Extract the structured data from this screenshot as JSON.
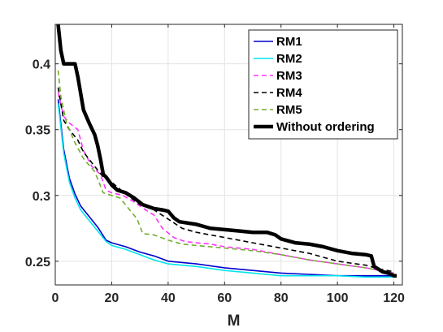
{
  "chart_data": {
    "type": "line",
    "xlabel": "M",
    "ylabel": "",
    "xlim": [
      0,
      123
    ],
    "ylim": [
      0.232,
      0.43
    ],
    "xticks": [
      0,
      20,
      40,
      60,
      80,
      100,
      120
    ],
    "yticks": [
      0.25,
      0.3,
      0.35,
      0.4
    ],
    "xtick_labels": [
      "0",
      "20",
      "40",
      "60",
      "80",
      "100",
      "120"
    ],
    "ytick_labels": [
      "0.25",
      "0.3",
      "0.35",
      "0.4"
    ],
    "grid": true,
    "legend_position": "top-right",
    "series": [
      {
        "name": "RM1",
        "color": "#0000cc",
        "style": "solid",
        "points": [
          [
            1,
            0.373
          ],
          [
            3,
            0.335
          ],
          [
            5,
            0.313
          ],
          [
            7,
            0.301
          ],
          [
            9,
            0.292
          ],
          [
            12,
            0.284
          ],
          [
            15,
            0.276
          ],
          [
            18,
            0.266
          ],
          [
            20,
            0.264
          ],
          [
            25,
            0.261
          ],
          [
            30,
            0.257
          ],
          [
            35,
            0.254
          ],
          [
            40,
            0.25
          ],
          [
            45,
            0.249
          ],
          [
            50,
            0.248
          ],
          [
            60,
            0.245
          ],
          [
            70,
            0.243
          ],
          [
            80,
            0.241
          ],
          [
            90,
            0.24
          ],
          [
            100,
            0.239
          ],
          [
            110,
            0.239
          ],
          [
            120,
            0.239
          ]
        ]
      },
      {
        "name": "RM2",
        "color": "#00e6ee",
        "style": "solid",
        "points": [
          [
            1,
            0.37
          ],
          [
            3,
            0.332
          ],
          [
            5,
            0.31
          ],
          [
            7,
            0.298
          ],
          [
            9,
            0.289
          ],
          [
            12,
            0.281
          ],
          [
            15,
            0.273
          ],
          [
            18,
            0.265
          ],
          [
            20,
            0.262
          ],
          [
            25,
            0.259
          ],
          [
            30,
            0.255
          ],
          [
            35,
            0.251
          ],
          [
            40,
            0.248
          ],
          [
            45,
            0.247
          ],
          [
            50,
            0.246
          ],
          [
            60,
            0.243
          ],
          [
            70,
            0.241
          ],
          [
            80,
            0.239
          ],
          [
            90,
            0.239
          ],
          [
            100,
            0.239
          ],
          [
            110,
            0.238
          ],
          [
            120,
            0.238
          ]
        ]
      },
      {
        "name": "RM3",
        "color": "#ff33ff",
        "style": "dashed",
        "points": [
          [
            1,
            0.378
          ],
          [
            3,
            0.36
          ],
          [
            5,
            0.355
          ],
          [
            8,
            0.35
          ],
          [
            10,
            0.334
          ],
          [
            13,
            0.322
          ],
          [
            16,
            0.316
          ],
          [
            18,
            0.304
          ],
          [
            20,
            0.302
          ],
          [
            24,
            0.3
          ],
          [
            28,
            0.295
          ],
          [
            32,
            0.289
          ],
          [
            35,
            0.285
          ],
          [
            38,
            0.275
          ],
          [
            42,
            0.268
          ],
          [
            46,
            0.265
          ],
          [
            50,
            0.264
          ],
          [
            55,
            0.263
          ],
          [
            60,
            0.261
          ],
          [
            70,
            0.259
          ],
          [
            80,
            0.255
          ],
          [
            90,
            0.251
          ],
          [
            100,
            0.248
          ],
          [
            110,
            0.245
          ],
          [
            115,
            0.243
          ],
          [
            120,
            0.241
          ]
        ]
      },
      {
        "name": "RM4",
        "color": "#000000",
        "style": "dashed",
        "points": [
          [
            1,
            0.382
          ],
          [
            3,
            0.357
          ],
          [
            5,
            0.35
          ],
          [
            8,
            0.342
          ],
          [
            10,
            0.333
          ],
          [
            14,
            0.322
          ],
          [
            17,
            0.314
          ],
          [
            20,
            0.31
          ],
          [
            25,
            0.301
          ],
          [
            30,
            0.293
          ],
          [
            35,
            0.289
          ],
          [
            40,
            0.282
          ],
          [
            45,
            0.275
          ],
          [
            50,
            0.272
          ],
          [
            60,
            0.268
          ],
          [
            70,
            0.264
          ],
          [
            80,
            0.26
          ],
          [
            90,
            0.256
          ],
          [
            100,
            0.25
          ],
          [
            110,
            0.247
          ],
          [
            115,
            0.244
          ],
          [
            120,
            0.242
          ]
        ]
      },
      {
        "name": "RM5",
        "color": "#77ac30",
        "style": "dashed",
        "points": [
          [
            1,
            0.395
          ],
          [
            2,
            0.375
          ],
          [
            4,
            0.355
          ],
          [
            7,
            0.34
          ],
          [
            10,
            0.328
          ],
          [
            14,
            0.318
          ],
          [
            17,
            0.302
          ],
          [
            20,
            0.3
          ],
          [
            23,
            0.298
          ],
          [
            26,
            0.29
          ],
          [
            29,
            0.282
          ],
          [
            31,
            0.271
          ],
          [
            35,
            0.27
          ],
          [
            40,
            0.266
          ],
          [
            45,
            0.263
          ],
          [
            50,
            0.262
          ],
          [
            60,
            0.26
          ],
          [
            70,
            0.258
          ],
          [
            80,
            0.255
          ],
          [
            90,
            0.251
          ],
          [
            100,
            0.248
          ],
          [
            110,
            0.245
          ],
          [
            115,
            0.243
          ],
          [
            120,
            0.241
          ]
        ]
      },
      {
        "name": "Without ordering",
        "color": "#000000",
        "style": "solid-thick",
        "points": [
          [
            1,
            0.43
          ],
          [
            2,
            0.41
          ],
          [
            3,
            0.4
          ],
          [
            7,
            0.4
          ],
          [
            8,
            0.39
          ],
          [
            10,
            0.365
          ],
          [
            12,
            0.355
          ],
          [
            14,
            0.346
          ],
          [
            15,
            0.338
          ],
          [
            16,
            0.328
          ],
          [
            17,
            0.316
          ],
          [
            18,
            0.314
          ],
          [
            20,
            0.308
          ],
          [
            22,
            0.304
          ],
          [
            25,
            0.302
          ],
          [
            28,
            0.298
          ],
          [
            31,
            0.293
          ],
          [
            35,
            0.29
          ],
          [
            38,
            0.289
          ],
          [
            40,
            0.288
          ],
          [
            42,
            0.283
          ],
          [
            44,
            0.28
          ],
          [
            50,
            0.278
          ],
          [
            55,
            0.275
          ],
          [
            60,
            0.274
          ],
          [
            65,
            0.273
          ],
          [
            70,
            0.272
          ],
          [
            75,
            0.272
          ],
          [
            78,
            0.27
          ],
          [
            80,
            0.267
          ],
          [
            85,
            0.264
          ],
          [
            90,
            0.263
          ],
          [
            95,
            0.261
          ],
          [
            100,
            0.258
          ],
          [
            105,
            0.256
          ],
          [
            110,
            0.255
          ],
          [
            112,
            0.254
          ],
          [
            113,
            0.246
          ],
          [
            116,
            0.242
          ],
          [
            118,
            0.241
          ],
          [
            120,
            0.239
          ],
          [
            121,
            0.239
          ]
        ]
      }
    ]
  }
}
